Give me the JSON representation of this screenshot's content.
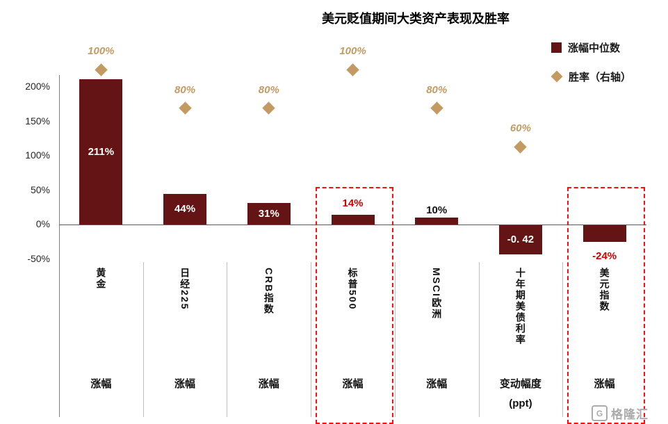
{
  "watermark": {
    "text": "格隆汇"
  },
  "chart_data": {
    "type": "bar+scatter",
    "title": "美元贬值期间大类资产表现及胜率",
    "legend": [
      {
        "label": "涨幅中位数",
        "marker": "square",
        "color": "#641414"
      },
      {
        "label": "胜率（右轴）",
        "marker": "diamond",
        "color": "#c49a63"
      }
    ],
    "left_axis": {
      "tick_labels": [
        "200%",
        "150%",
        "100%",
        "50%",
        "0%",
        "-50%"
      ],
      "tick_values": [
        200,
        150,
        100,
        50,
        0,
        -50
      ],
      "range": [
        -50,
        250
      ]
    },
    "right_axis": {
      "label": "胜率（右轴）",
      "ticks_shown": false
    },
    "categories": [
      {
        "name": "黄金",
        "bottom_labels": [
          "涨幅"
        ],
        "bar": {
          "value": 211,
          "label": "211%",
          "plot_pct": 211,
          "label_style": "inside-white"
        },
        "win_rate": {
          "value": 100,
          "label": "100%"
        },
        "highlighted": false
      },
      {
        "name": "日经225",
        "bottom_labels": [
          "涨幅"
        ],
        "bar": {
          "value": 44,
          "label": "44%",
          "plot_pct": 44,
          "label_style": "inside-white"
        },
        "win_rate": {
          "value": 80,
          "label": "80%"
        },
        "highlighted": false
      },
      {
        "name": "CRB指数",
        "bottom_labels": [
          "涨幅"
        ],
        "bar": {
          "value": 31,
          "label": "31%",
          "plot_pct": 31,
          "label_style": "inside-white"
        },
        "win_rate": {
          "value": 80,
          "label": "80%"
        },
        "highlighted": false
      },
      {
        "name": "标普500",
        "bottom_labels": [
          "涨幅"
        ],
        "bar": {
          "value": 14,
          "label": "14%",
          "plot_pct": 14,
          "label_style": "above-red"
        },
        "win_rate": {
          "value": 100,
          "label": "100%"
        },
        "highlighted": true
      },
      {
        "name": "MSCI欧洲",
        "bottom_labels": [
          "涨幅"
        ],
        "bar": {
          "value": 10,
          "label": "10%",
          "plot_pct": 10,
          "label_style": "above-black"
        },
        "win_rate": {
          "value": 80,
          "label": "80%"
        },
        "highlighted": false
      },
      {
        "name": "十年期美债利率",
        "bottom_labels": [
          "变动幅度",
          "(ppt)"
        ],
        "bar": {
          "value": -0.42,
          "label": "-0. 42",
          "plot_pct": -42,
          "label_style": "inside-white"
        },
        "win_rate": {
          "value": 60,
          "label": "60%"
        },
        "highlighted": false
      },
      {
        "name": "美元指数",
        "bottom_labels": [
          "涨幅"
        ],
        "bar": {
          "value": -24,
          "label": "-24%",
          "plot_pct": -24,
          "label_style": "below-red"
        },
        "win_rate": null,
        "highlighted": true
      }
    ],
    "colors": {
      "bar": "#641414",
      "diamond": "#c49a63",
      "highlight_box": "#fd0d0d",
      "negative_label_red": "#d40000",
      "zero_line": "#595959",
      "axis_line": "#808080"
    }
  }
}
